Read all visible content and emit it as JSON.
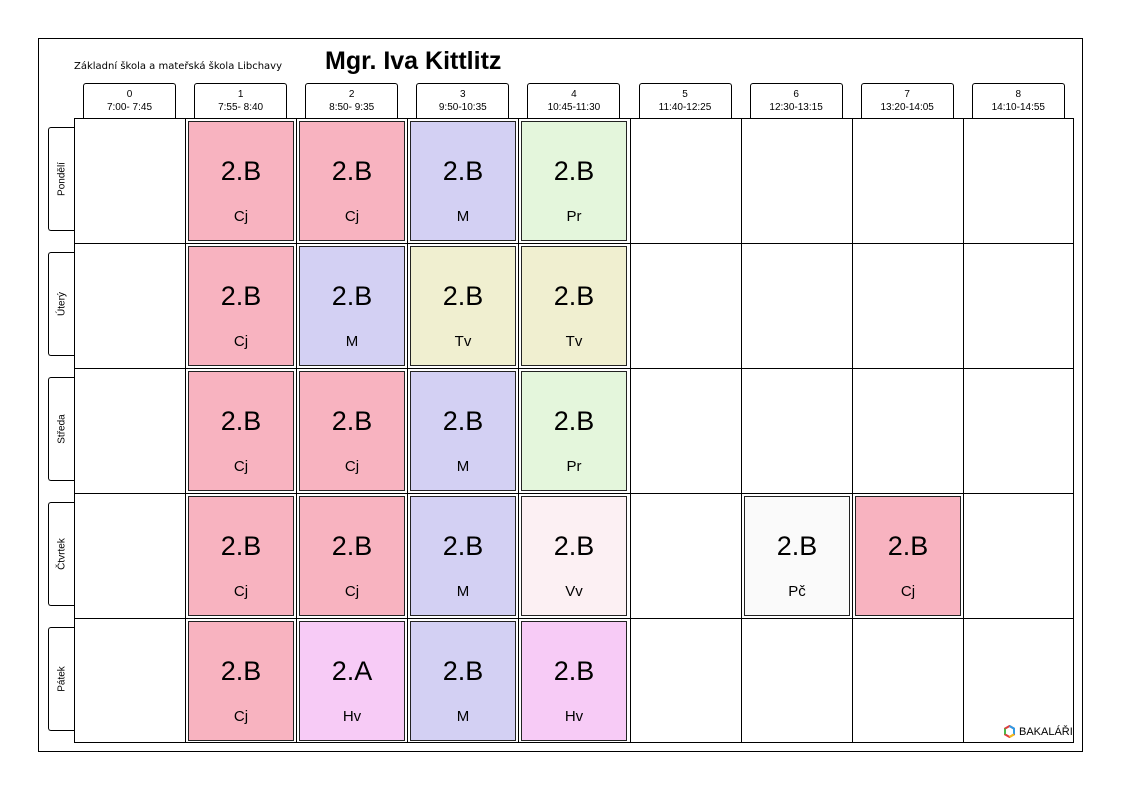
{
  "header": {
    "school": "Základní škola a mateřská škola Libchavy",
    "teacher": "Mgr. Iva Kittlitz"
  },
  "periods": [
    {
      "num": "0",
      "time": "7:00- 7:45"
    },
    {
      "num": "1",
      "time": "7:55- 8:40"
    },
    {
      "num": "2",
      "time": "8:50- 9:35"
    },
    {
      "num": "3",
      "time": "9:50-10:35"
    },
    {
      "num": "4",
      "time": "10:45-11:30"
    },
    {
      "num": "5",
      "time": "11:40-12:25"
    },
    {
      "num": "6",
      "time": "12:30-13:15"
    },
    {
      "num": "7",
      "time": "13:20-14:05"
    },
    {
      "num": "8",
      "time": "14:10-14:55"
    }
  ],
  "days": [
    "Pondělí",
    "Úterý",
    "Středa",
    "Čtvrtek",
    "Pátek"
  ],
  "colors": {
    "Cj": "#f8b3c0",
    "M": "#d3d0f3",
    "Pr": "#e4f6dc",
    "Tv": "#f0efd0",
    "Vv": "#fcf0f3",
    "Pč": "#fafafa",
    "Hv": "#f7cbf6"
  },
  "lessons": [
    {
      "day": 0,
      "period": 1,
      "class": "2.B",
      "subject": "Cj"
    },
    {
      "day": 0,
      "period": 2,
      "class": "2.B",
      "subject": "Cj"
    },
    {
      "day": 0,
      "period": 3,
      "class": "2.B",
      "subject": "M"
    },
    {
      "day": 0,
      "period": 4,
      "class": "2.B",
      "subject": "Pr"
    },
    {
      "day": 1,
      "period": 1,
      "class": "2.B",
      "subject": "Cj"
    },
    {
      "day": 1,
      "period": 2,
      "class": "2.B",
      "subject": "M"
    },
    {
      "day": 1,
      "period": 3,
      "class": "2.B",
      "subject": "Tv"
    },
    {
      "day": 1,
      "period": 4,
      "class": "2.B",
      "subject": "Tv"
    },
    {
      "day": 2,
      "period": 1,
      "class": "2.B",
      "subject": "Cj"
    },
    {
      "day": 2,
      "period": 2,
      "class": "2.B",
      "subject": "Cj"
    },
    {
      "day": 2,
      "period": 3,
      "class": "2.B",
      "subject": "M"
    },
    {
      "day": 2,
      "period": 4,
      "class": "2.B",
      "subject": "Pr"
    },
    {
      "day": 3,
      "period": 1,
      "class": "2.B",
      "subject": "Cj"
    },
    {
      "day": 3,
      "period": 2,
      "class": "2.B",
      "subject": "Cj"
    },
    {
      "day": 3,
      "period": 3,
      "class": "2.B",
      "subject": "M"
    },
    {
      "day": 3,
      "period": 4,
      "class": "2.B",
      "subject": "Vv"
    },
    {
      "day": 3,
      "period": 6,
      "class": "2.B",
      "subject": "Pč"
    },
    {
      "day": 3,
      "period": 7,
      "class": "2.B",
      "subject": "Cj"
    },
    {
      "day": 4,
      "period": 1,
      "class": "2.B",
      "subject": "Cj"
    },
    {
      "day": 4,
      "period": 2,
      "class": "2.A",
      "subject": "Hv"
    },
    {
      "day": 4,
      "period": 3,
      "class": "2.B",
      "subject": "M"
    },
    {
      "day": 4,
      "period": 4,
      "class": "2.B",
      "subject": "Hv"
    }
  ],
  "footer": {
    "brand": "BAKALÁŘI",
    "brand_icon": "bakalari-logo-icon"
  }
}
